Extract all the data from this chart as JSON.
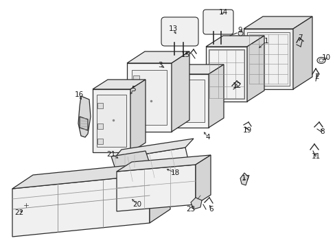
{
  "bg_color": "#ffffff",
  "line_color": "#2a2a2a",
  "text_color": "#1a1a1a",
  "fig_width": 4.89,
  "fig_height": 3.6,
  "dpi": 100
}
